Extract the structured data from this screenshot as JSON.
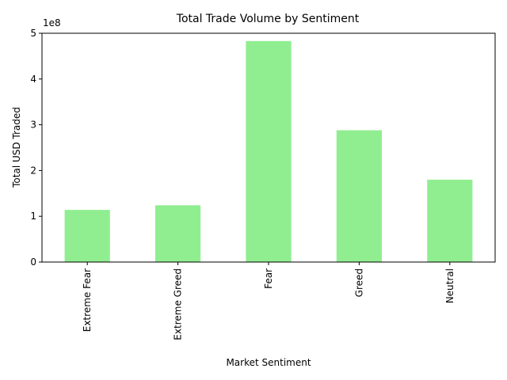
{
  "chart_data": {
    "type": "bar",
    "title": "Total Trade Volume by Sentiment",
    "xlabel": "Market Sentiment",
    "ylabel": "Total USD Traded",
    "offset_label": "1e8",
    "categories": [
      "Extreme Fear",
      "Extreme Greed",
      "Fear",
      "Greed",
      "Neutral"
    ],
    "values": [
      114000000,
      124000000,
      483000000,
      288000000,
      180000000
    ],
    "ylim": [
      0,
      500000000
    ],
    "yticks": [
      0,
      100000000,
      200000000,
      300000000,
      400000000,
      500000000
    ],
    "ytick_labels": [
      "0",
      "1",
      "2",
      "3",
      "4",
      "5"
    ],
    "bar_color": "#90ee90",
    "grid": false,
    "legend": "none"
  }
}
